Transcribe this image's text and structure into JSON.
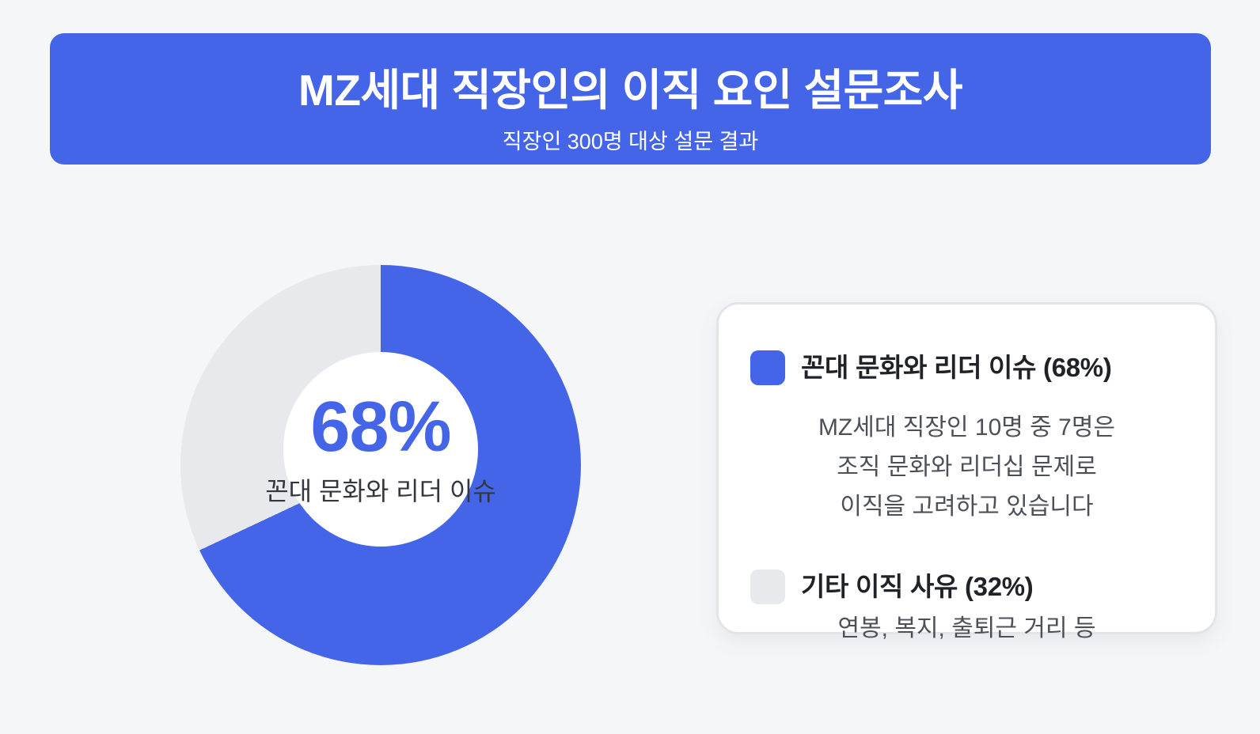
{
  "header": {
    "title": "MZ세대 직장인의 이직 요인 설문조사",
    "subtitle": "직장인 300명 대상 설문 결과",
    "bg_color": "#4565E8",
    "text_color": "#FFFFFF"
  },
  "chart_data": {
    "type": "pie",
    "subtype": "donut",
    "labels": [
      "꼰대 문화와 리더 이슈",
      "기타 이직 사유"
    ],
    "values": [
      68,
      32
    ],
    "colors": [
      "#4565E8",
      "#E8E9ED"
    ],
    "start_angle_deg": 0,
    "direction": "clockwise",
    "center_value": "68%",
    "center_label": "꼰대 문화와 리더 이슈",
    "title": "MZ세대 직장인의 이직 요인 설문조사",
    "legend_position": "right"
  },
  "donut_center": {
    "percent": "68%",
    "label": "꼰대 문화와 리더 이슈"
  },
  "legend": {
    "items": [
      {
        "swatch_color": "#4565E8",
        "title": "꼰대 문화와 리더 이슈 (68%)",
        "description_lines": [
          "MZ세대 직장인 10명 중 7명은",
          "조직 문화와 리더십 문제로",
          "이직을 고려하고 있습니다"
        ]
      },
      {
        "swatch_color": "#E8E9ED",
        "title": "기타 이직 사유 (32%)",
        "description_lines": [
          "연봉, 복지, 출퇴근 거리 등"
        ]
      }
    ]
  },
  "colors": {
    "accent_blue": "#4565E8",
    "slice_gray": "#E8E9ED",
    "page_background": "#F5F6F8",
    "card_border": "#E2E4E8"
  }
}
